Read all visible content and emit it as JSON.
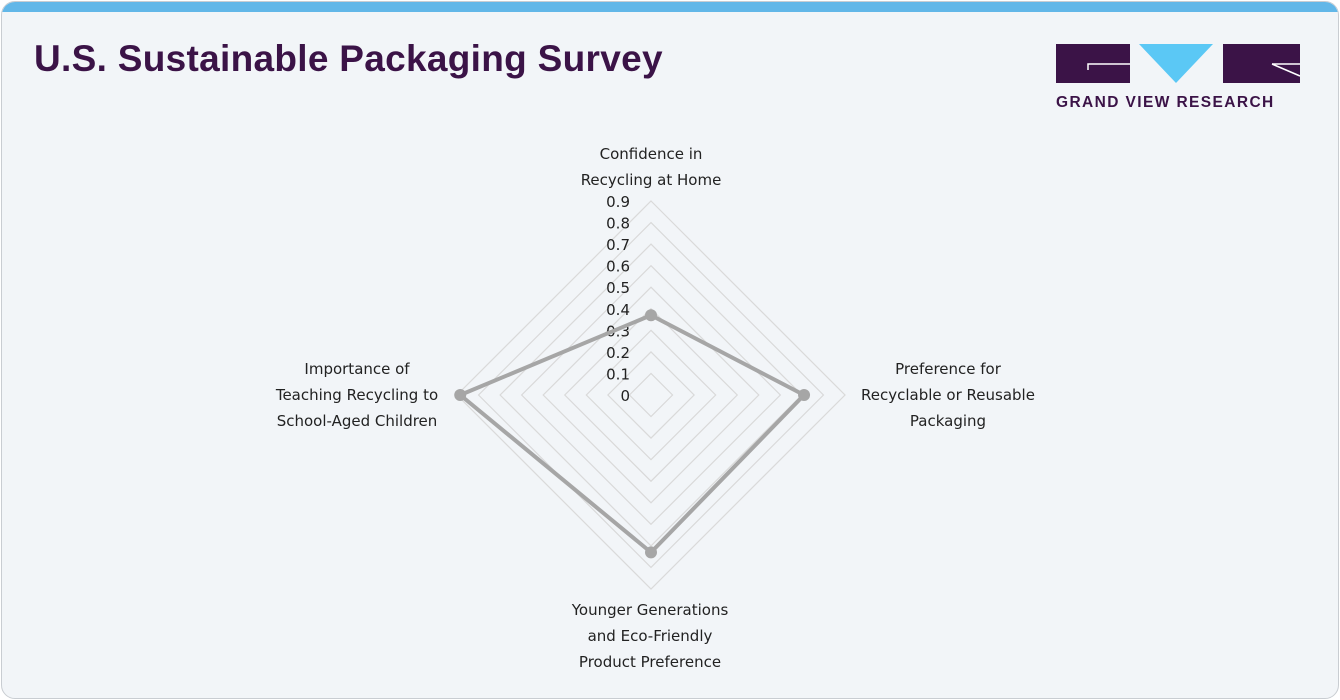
{
  "header": {
    "title": "U.S. Sustainable Packaging Survey"
  },
  "logo": {
    "text": "GRAND VIEW RESEARCH",
    "colors": {
      "dark": "#3b1347",
      "accent": "#5bc8f5"
    }
  },
  "chart_data": {
    "type": "radar",
    "title": "",
    "categories": [
      [
        "Confidence in",
        "Recycling at Home"
      ],
      [
        "Preference for",
        "Recyclable or Reusable",
        "Packaging"
      ],
      [
        "Younger Generations",
        "and Eco-Friendly",
        "Product Preference"
      ],
      [
        "Importance of",
        "Teaching Recycling to",
        "School-Aged Children"
      ]
    ],
    "values": [
      0.37,
      0.71,
      0.73,
      0.885
    ],
    "rlim": [
      0,
      0.9
    ],
    "ticks": [
      "0",
      "0.1",
      "0.2",
      "0.3",
      "0.4",
      "0.5",
      "0.6",
      "0.7",
      "0.8",
      "0.9"
    ],
    "grid": true,
    "series_color": "#a6a6a6",
    "grid_color": "#d9d9d9"
  }
}
